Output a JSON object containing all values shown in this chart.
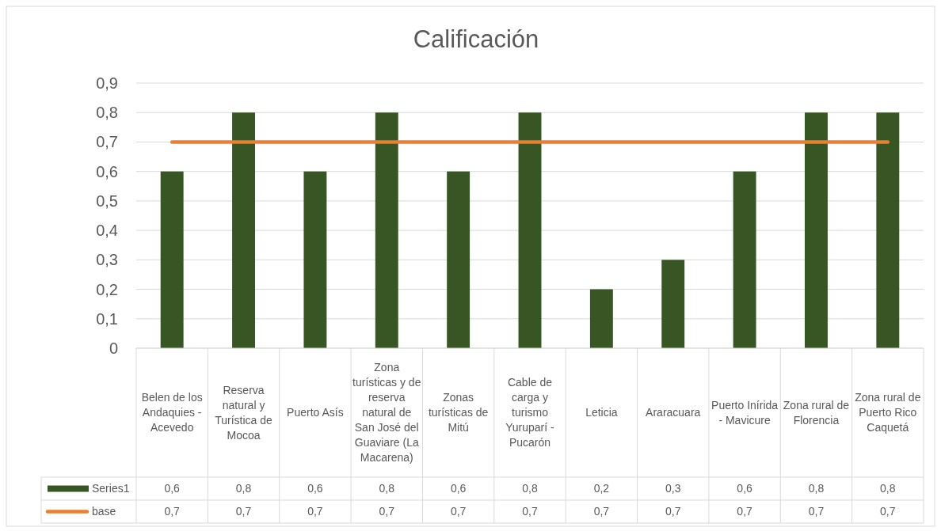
{
  "chart_data": {
    "type": "bar",
    "title": "Calificación",
    "categories": [
      "Belen de los Andaquies - Acevedo",
      "Reserva natural y Turística de Mocoa",
      "Puerto Asís",
      "Zona turísticas y de reserva natural de San José del Guaviare (La Macarena)",
      "Zonas turísticas de Mitú",
      "Cable de carga y turismo Yuruparí - Pucarón",
      "Leticia",
      "Araracuara",
      "Puerto Inírida - Mavicure",
      "Zona rural de Florencia",
      "Zona rural de Puerto Rico Caquetá"
    ],
    "series": [
      {
        "name": "Series1",
        "color": "#375623",
        "values": [
          0.6,
          0.8,
          0.6,
          0.8,
          0.6,
          0.8,
          0.2,
          0.3,
          0.6,
          0.8,
          0.8
        ],
        "value_labels": [
          "0,6",
          "0,8",
          "0,6",
          "0,8",
          "0,6",
          "0,8",
          "0,2",
          "0,3",
          "0,6",
          "0,8",
          "0,8"
        ]
      },
      {
        "name": "base",
        "type": "line",
        "color": "#ed7d31",
        "values": [
          0.7,
          0.7,
          0.7,
          0.7,
          0.7,
          0.7,
          0.7,
          0.7,
          0.7,
          0.7,
          0.7
        ],
        "value_labels": [
          "0,7",
          "0,7",
          "0,7",
          "0,7",
          "0,7",
          "0,7",
          "0,7",
          "0,7",
          "0,7",
          "0,7",
          "0,7"
        ]
      }
    ],
    "ylim": [
      0,
      0.9
    ],
    "yticks": [
      0,
      {
        "value": 0.1,
        "label": "0,1"
      },
      {
        "value": 0.2,
        "label": "0,2"
      },
      {
        "value": 0.3,
        "label": "0,3"
      },
      {
        "value": 0.4,
        "label": "0,4"
      },
      {
        "value": 0.5,
        "label": "0,5"
      },
      {
        "value": 0.6,
        "label": "0,6"
      },
      {
        "value": 0.7,
        "label": "0,7"
      },
      {
        "value": 0.8,
        "label": "0,8"
      },
      {
        "value": 0.9,
        "label": "0,9"
      }
    ],
    "grid": "y",
    "legend": "bottom"
  }
}
